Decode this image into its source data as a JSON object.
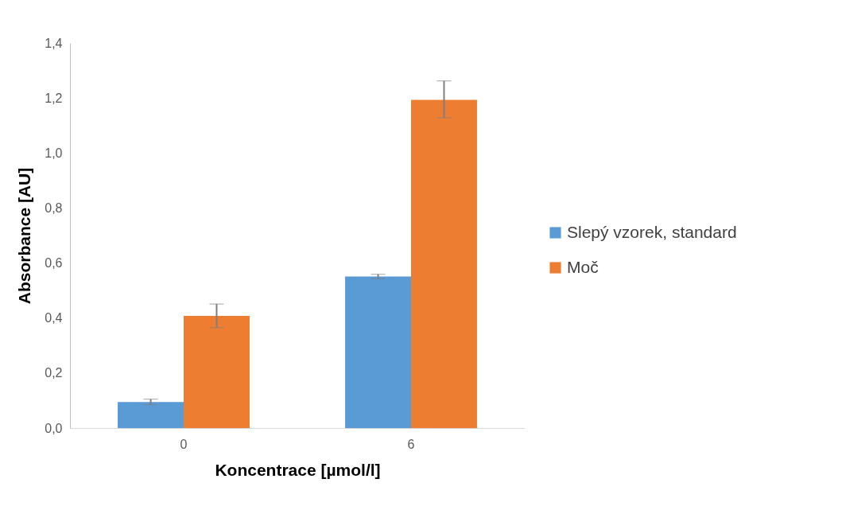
{
  "chart_data": {
    "type": "bar",
    "xlabel": "Koncentrace [µmol/l]",
    "ylabel": "Absorbance [AU]",
    "categories": [
      "0",
      "6"
    ],
    "series": [
      {
        "name": "Slepý vzorek, standard",
        "color": "#5b9bd5",
        "values": [
          0.095,
          0.551
        ],
        "errors": [
          0.01,
          0.008
        ]
      },
      {
        "name": "Moč",
        "color": "#ed7d31",
        "values": [
          0.408,
          1.193
        ],
        "errors": [
          0.043,
          [
            1.128,
            1.262
          ]
        ]
      }
    ],
    "ylim": [
      0,
      1.4
    ],
    "yticks": [
      {
        "value": 0,
        "label": "0,0"
      },
      {
        "value": 0.2,
        "label": "0,2"
      },
      {
        "value": 0.4,
        "label": "0,4"
      },
      {
        "value": 0.6,
        "label": "0,6"
      },
      {
        "value": 0.8,
        "label": "0,8"
      },
      {
        "value": 1.0,
        "label": "1,0"
      },
      {
        "value": 1.2,
        "label": "1,2"
      },
      {
        "value": 1.4,
        "label": "1,4"
      }
    ],
    "grid": false,
    "legend": "right"
  }
}
